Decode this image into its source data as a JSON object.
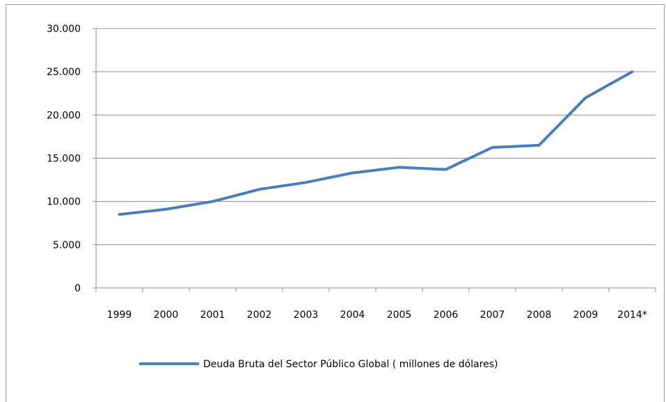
{
  "chart_data": {
    "type": "line",
    "categories": [
      "1999",
      "2000",
      "2001",
      "2002",
      "2003",
      "2004",
      "2005",
      "2006",
      "2007",
      "2008",
      "2009",
      "2014*"
    ],
    "series": [
      {
        "name": "Deuda Bruta del Sector Público Global ( millones de dólares)",
        "color": "#4a7ebb",
        "values": [
          8500,
          9100,
          10000,
          11400,
          12200,
          13300,
          13950,
          13700,
          16250,
          16500,
          22000,
          25000
        ]
      }
    ],
    "ylim": [
      0,
      30000
    ],
    "yticks": [
      0,
      5000,
      10000,
      15000,
      20000,
      25000,
      30000
    ],
    "ytick_labels": [
      "0",
      "5.000",
      "10.000",
      "15.000",
      "20.000",
      "25.000",
      "30.000"
    ],
    "grid": true,
    "legend_position": "bottom",
    "title": "",
    "xlabel": "",
    "ylabel": ""
  }
}
